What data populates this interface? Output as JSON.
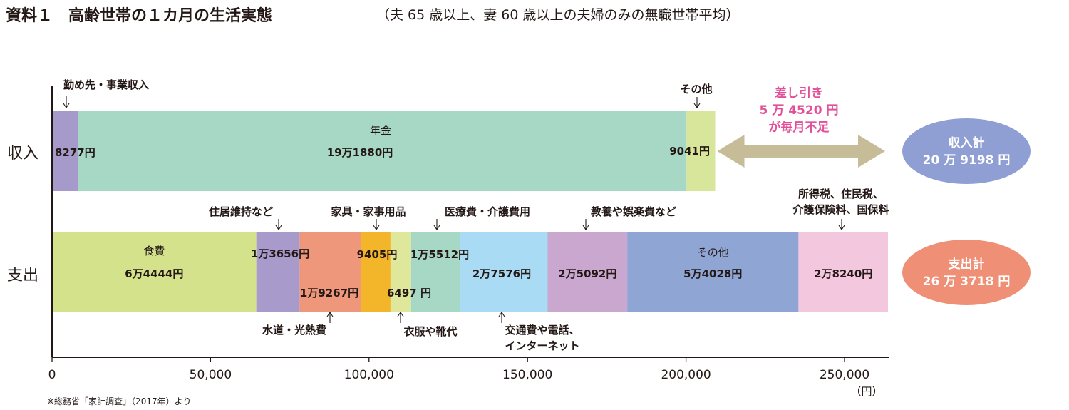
{
  "header": {
    "title": "資料１　高齢世帯の１カ月の生活実態",
    "subtitle": "（夫 65 歳以上、妻 60 歳以上の夫婦のみの無職世帯平均）"
  },
  "source_note": "※総務省「家計調査」（2017年）より",
  "chart_data": {
    "type": "bar",
    "orientation": "horizontal",
    "stacked": true,
    "categories": [
      "収入",
      "支出"
    ],
    "x_unit": "（円）",
    "xlim": [
      0,
      264000
    ],
    "x_ticks": [
      0,
      50000,
      100000,
      150000,
      200000,
      250000
    ],
    "x_tick_labels": [
      "0",
      "50,000",
      "100,000",
      "150,000",
      "200,000",
      "250,000"
    ],
    "grid": false,
    "legend": "none",
    "income_segments": [
      {
        "label": "勤め先・事業収入",
        "value": 8277,
        "value_label": "8277円",
        "color": "#a59ac9"
      },
      {
        "label": "年金",
        "value": 191880,
        "value_label": "19万1880円",
        "color": "#a7d7c5"
      },
      {
        "label": "その他",
        "value": 9041,
        "value_label": "9041円",
        "color": "#d8e69c"
      }
    ],
    "expense_segments": [
      {
        "label": "食費",
        "value": 64444,
        "value_label": "6万4444円",
        "color": "#d3e28b"
      },
      {
        "label": "住居維持など",
        "value": 13656,
        "value_label": "1万3656円",
        "color": "#a89bcb"
      },
      {
        "label": "水道・光熱費",
        "value": 19267,
        "value_label": "1万9267円",
        "color": "#ee977a"
      },
      {
        "label": "家具・家事用品",
        "value": 9405,
        "value_label": "9405円",
        "color": "#f3b62a"
      },
      {
        "label": "衣服や靴代",
        "value": 6497,
        "value_label": "6497 円",
        "color": "#dfe79b"
      },
      {
        "label": "医療費・介護費用",
        "value": 15512,
        "value_label": "1万5512円",
        "color": "#a7d8c6"
      },
      {
        "label": "交通費や電話、インターネット",
        "value": 27576,
        "value_label": "2万7576円",
        "color": "#a9dcf4"
      },
      {
        "label": "教養や娯楽費など",
        "value": 25092,
        "value_label": "2万5092円",
        "color": "#c9a7cf"
      },
      {
        "label": "その他",
        "value": 54028,
        "value_label": "5万4028円",
        "color": "#8fa5d4"
      },
      {
        "label": "所得税、住民税、介護保険料、国保料",
        "value": 28240,
        "value_label": "2万8240円",
        "color": "#f3c7de"
      }
    ],
    "difference": {
      "lines": [
        "差し引き",
        "5 万 4520 円",
        "が毎月不足"
      ],
      "value": 54520,
      "text_color": "#e2509a",
      "arrow_color": "#c6bc97"
    },
    "totals": [
      {
        "title": "収入計",
        "value": 209198,
        "value_label": "20 万 9198 円",
        "color": "#8f9fd3"
      },
      {
        "title": "支出計",
        "value": 263718,
        "value_label": "26 万 3718 円",
        "color": "#ee8f76"
      }
    ]
  }
}
